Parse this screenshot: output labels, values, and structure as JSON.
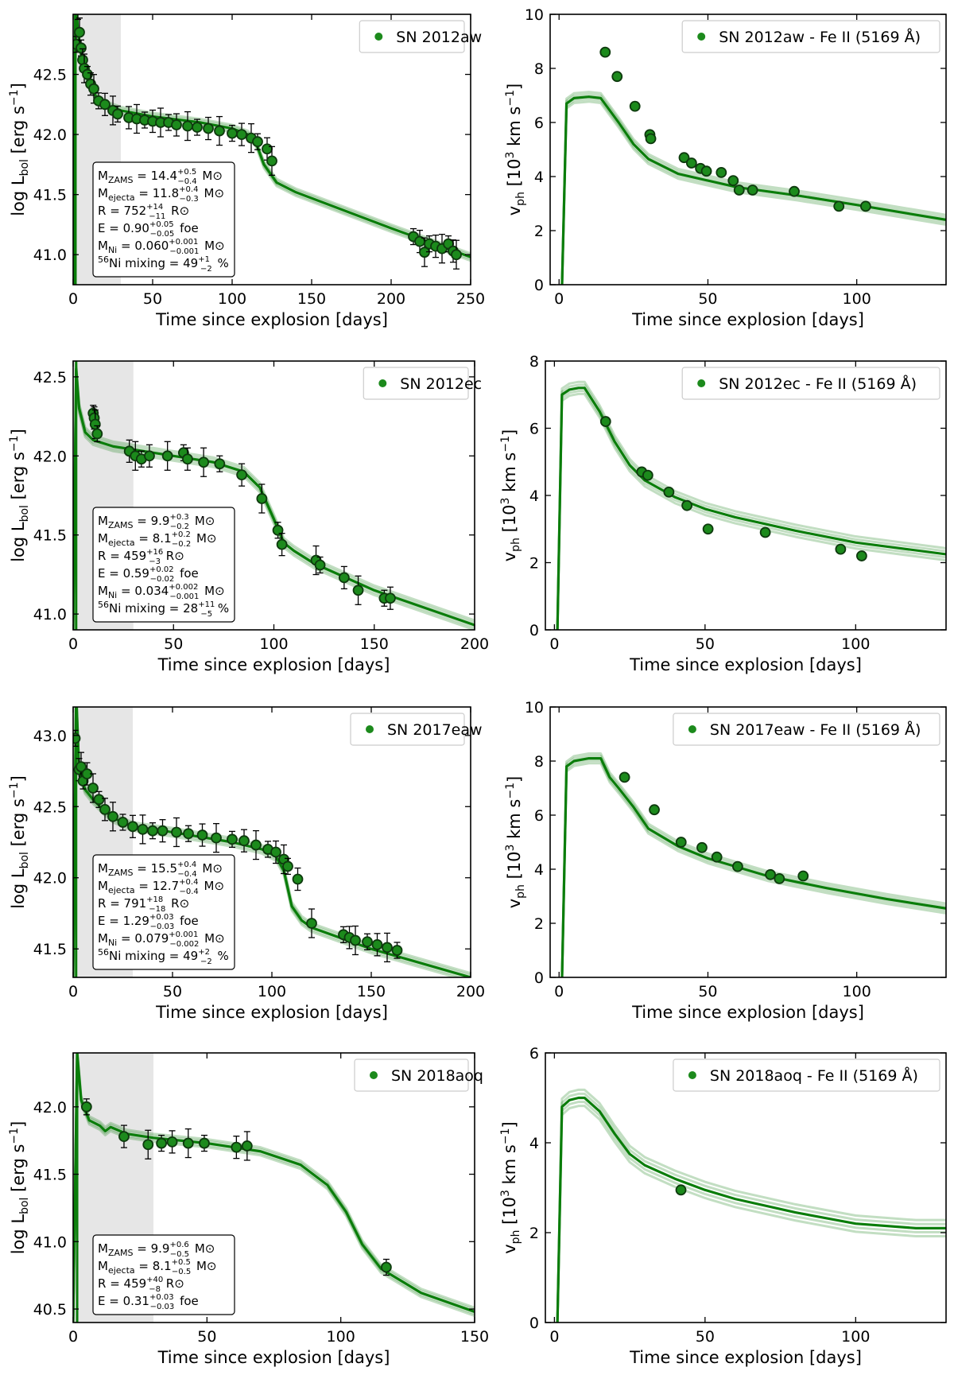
{
  "colors": {
    "accent": "#0a7d0a",
    "marker_fill": "#1c8a1c",
    "marker_edge": "#0e3a0e",
    "shade": "#e6e6e6"
  },
  "chart_data": [
    {
      "id": "lc1",
      "type": "line",
      "kind": "lightcurve",
      "title": "",
      "xlabel": "Time since explosion [days]",
      "ylabel": "log L_bol [erg s^-1]",
      "xlim": [
        0,
        250
      ],
      "ylim": [
        40.75,
        43.0
      ],
      "xticks": [
        0,
        50,
        100,
        150,
        200,
        250
      ],
      "yticks": [
        41.0,
        41.5,
        42.0,
        42.5
      ],
      "shade_x": [
        0,
        30
      ],
      "legend": "SN 2012aw",
      "model_x": [
        0,
        1.5,
        3,
        6,
        10,
        15,
        20,
        30,
        50,
        80,
        100,
        110,
        115,
        120,
        128,
        140,
        200,
        250
      ],
      "model_y": [
        40.75,
        43.2,
        42.85,
        42.58,
        42.42,
        42.3,
        42.25,
        42.2,
        42.15,
        42.1,
        42.05,
        42.0,
        41.93,
        41.75,
        41.6,
        41.52,
        41.22,
        40.98
      ],
      "points": [
        {
          "x": 2,
          "y": 42.75
        },
        {
          "x": 3,
          "y": 43.05
        },
        {
          "x": 4,
          "y": 42.85
        },
        {
          "x": 5,
          "y": 42.72
        },
        {
          "x": 6,
          "y": 42.62
        },
        {
          "x": 7,
          "y": 42.55
        },
        {
          "x": 9,
          "y": 42.5
        },
        {
          "x": 11,
          "y": 42.42
        },
        {
          "x": 13,
          "y": 42.38
        },
        {
          "x": 16,
          "y": 42.28
        },
        {
          "x": 20,
          "y": 42.25
        },
        {
          "x": 25,
          "y": 42.2
        },
        {
          "x": 28,
          "y": 42.17
        },
        {
          "x": 35,
          "y": 42.14
        },
        {
          "x": 40,
          "y": 42.13
        },
        {
          "x": 45,
          "y": 42.12
        },
        {
          "x": 50,
          "y": 42.11
        },
        {
          "x": 55,
          "y": 42.1
        },
        {
          "x": 60,
          "y": 42.1
        },
        {
          "x": 65,
          "y": 42.08
        },
        {
          "x": 72,
          "y": 42.07
        },
        {
          "x": 78,
          "y": 42.06
        },
        {
          "x": 85,
          "y": 42.05
        },
        {
          "x": 92,
          "y": 42.03
        },
        {
          "x": 100,
          "y": 42.01
        },
        {
          "x": 106,
          "y": 42.0
        },
        {
          "x": 112,
          "y": 41.97
        },
        {
          "x": 116,
          "y": 41.94
        },
        {
          "x": 122,
          "y": 41.88
        },
        {
          "x": 125,
          "y": 41.78
        },
        {
          "x": 214,
          "y": 41.15
        },
        {
          "x": 218,
          "y": 41.11
        },
        {
          "x": 221,
          "y": 41.02
        },
        {
          "x": 224,
          "y": 41.09
        },
        {
          "x": 228,
          "y": 41.07
        },
        {
          "x": 232,
          "y": 41.05
        },
        {
          "x": 236,
          "y": 41.09
        },
        {
          "x": 239,
          "y": 41.03
        },
        {
          "x": 241,
          "y": 41.0
        }
      ],
      "params": [
        "M_ZAMS = 14.4 (+0.5/−0.4) M⊙",
        "M_ejecta = 11.8 (+0.4/−0.3) M⊙",
        "R = 752 (+14/−11) R⊙",
        "E = 0.90 (+0.05/−0.05) foe",
        "M_Ni = 0.060 (+0.001/−0.001) M⊙",
        "56Ni mixing = 49 (+1/−2) %"
      ]
    },
    {
      "id": "v1",
      "type": "line",
      "kind": "velocity",
      "title": "",
      "xlabel": "Time since explosion [days]",
      "ylabel": "v_ph [10^3 km s^-1]",
      "xlim": [
        -3,
        130
      ],
      "ylim": [
        0,
        10
      ],
      "xticks": [
        0,
        50,
        100
      ],
      "yticks": [
        0,
        2,
        4,
        6,
        8,
        10
      ],
      "legend": "SN 2012aw - Fe II (5169 Å)",
      "model_x": [
        1,
        2.5,
        5,
        10,
        14,
        20,
        25,
        30,
        40,
        50,
        60,
        80,
        100,
        130
      ],
      "model_y": [
        0,
        6.7,
        6.9,
        6.95,
        6.9,
        6.0,
        5.2,
        4.65,
        4.1,
        3.85,
        3.6,
        3.3,
        2.95,
        2.4
      ],
      "points": [
        {
          "x": 15.5,
          "y": 8.6
        },
        {
          "x": 19.5,
          "y": 7.7
        },
        {
          "x": 25.5,
          "y": 6.6
        },
        {
          "x": 30.5,
          "y": 5.55
        },
        {
          "x": 30.8,
          "y": 5.4
        },
        {
          "x": 42,
          "y": 4.7
        },
        {
          "x": 44.5,
          "y": 4.5
        },
        {
          "x": 47.5,
          "y": 4.3
        },
        {
          "x": 49.5,
          "y": 4.2
        },
        {
          "x": 54.5,
          "y": 4.15
        },
        {
          "x": 58.5,
          "y": 3.85
        },
        {
          "x": 60.5,
          "y": 3.5
        },
        {
          "x": 65,
          "y": 3.5
        },
        {
          "x": 79,
          "y": 3.45
        },
        {
          "x": 94,
          "y": 2.9
        },
        {
          "x": 103,
          "y": 2.9
        }
      ]
    },
    {
      "id": "lc2",
      "type": "line",
      "kind": "lightcurve",
      "title": "",
      "xlabel": "Time since explosion [days]",
      "ylabel": "log L_bol [erg s^-1]",
      "xlim": [
        0,
        200
      ],
      "ylim": [
        40.9,
        42.6
      ],
      "xticks": [
        0,
        50,
        100,
        150,
        200
      ],
      "yticks": [
        41.0,
        41.5,
        42.0,
        42.5
      ],
      "shade_x": [
        0,
        30
      ],
      "legend": "SN 2012ec",
      "model_x": [
        0,
        1.5,
        3,
        6,
        10,
        15,
        20,
        30,
        50,
        70,
        85,
        93,
        100,
        105,
        110,
        120,
        150,
        200
      ],
      "model_y": [
        40.9,
        42.55,
        42.3,
        42.15,
        42.1,
        42.08,
        42.06,
        42.04,
        42.0,
        41.96,
        41.9,
        41.8,
        41.6,
        41.45,
        41.4,
        41.32,
        41.15,
        40.93
      ],
      "points": [
        {
          "x": 10,
          "y": 42.27
        },
        {
          "x": 10.5,
          "y": 42.24
        },
        {
          "x": 11,
          "y": 42.2
        },
        {
          "x": 12,
          "y": 42.14
        },
        {
          "x": 28,
          "y": 42.03
        },
        {
          "x": 31,
          "y": 42.0
        },
        {
          "x": 34,
          "y": 41.98
        },
        {
          "x": 38,
          "y": 42.0
        },
        {
          "x": 47,
          "y": 42.0
        },
        {
          "x": 55,
          "y": 42.02
        },
        {
          "x": 57,
          "y": 41.98
        },
        {
          "x": 65,
          "y": 41.96
        },
        {
          "x": 73,
          "y": 41.95
        },
        {
          "x": 84,
          "y": 41.88
        },
        {
          "x": 94,
          "y": 41.73
        },
        {
          "x": 102,
          "y": 41.53
        },
        {
          "x": 104,
          "y": 41.44
        },
        {
          "x": 121,
          "y": 41.34
        },
        {
          "x": 123,
          "y": 41.31
        },
        {
          "x": 135,
          "y": 41.23
        },
        {
          "x": 142,
          "y": 41.15
        },
        {
          "x": 155,
          "y": 41.1
        },
        {
          "x": 158,
          "y": 41.1
        }
      ],
      "params": [
        "M_ZAMS = 9.9 (+0.3/−0.2) M⊙",
        "M_ejecta = 8.1 (+0.2/−0.2) M⊙",
        "R = 459 (+16/−3) R⊙",
        "E = 0.59 (+0.02/−0.02) foe",
        "M_Ni = 0.034 (+0.002/−0.001) M⊙",
        "56Ni mixing = 28 (+11/−5) %"
      ]
    },
    {
      "id": "v2",
      "type": "line",
      "kind": "velocity",
      "title": "",
      "xlabel": "Time since explosion [days]",
      "ylabel": "v_ph [10^3 km s^-1]",
      "xlim": [
        -3,
        130
      ],
      "ylim": [
        0,
        8
      ],
      "xticks": [
        0,
        50,
        100
      ],
      "yticks": [
        0,
        2,
        4,
        6,
        8
      ],
      "legend": "SN 2012ec - Fe II (5169 Å)",
      "model_x": [
        1,
        2.5,
        5,
        8,
        10,
        15,
        20,
        25,
        30,
        40,
        50,
        60,
        80,
        100,
        130
      ],
      "model_y": [
        0,
        7.0,
        7.15,
        7.2,
        7.2,
        6.5,
        5.6,
        4.9,
        4.45,
        3.95,
        3.6,
        3.35,
        2.95,
        2.6,
        2.25
      ],
      "points": [
        {
          "x": 17,
          "y": 6.2
        },
        {
          "x": 29,
          "y": 4.7
        },
        {
          "x": 31,
          "y": 4.6
        },
        {
          "x": 38,
          "y": 4.1
        },
        {
          "x": 44,
          "y": 3.7
        },
        {
          "x": 51,
          "y": 3.0
        },
        {
          "x": 70,
          "y": 2.9
        },
        {
          "x": 95,
          "y": 2.4
        },
        {
          "x": 102,
          "y": 2.2
        }
      ]
    },
    {
      "id": "lc3",
      "type": "line",
      "kind": "lightcurve",
      "title": "",
      "xlabel": "Time since explosion [days]",
      "ylabel": "log L_bol [erg s^-1]",
      "xlim": [
        0,
        200
      ],
      "ylim": [
        41.3,
        43.2
      ],
      "xticks": [
        0,
        50,
        100,
        150,
        200
      ],
      "yticks": [
        41.5,
        42.0,
        42.5,
        43.0
      ],
      "shade_x": [
        0,
        30
      ],
      "legend": "SN 2017eaw",
      "model_x": [
        0,
        1.5,
        3,
        6,
        10,
        15,
        20,
        30,
        50,
        80,
        95,
        102,
        106,
        110,
        115,
        120,
        150,
        200
      ],
      "model_y": [
        41.3,
        43.3,
        42.75,
        42.62,
        42.55,
        42.48,
        42.42,
        42.36,
        42.32,
        42.25,
        42.2,
        42.15,
        42.05,
        41.8,
        41.7,
        41.65,
        41.5,
        41.3
      ],
      "points": [
        {
          "x": 1,
          "y": 42.98
        },
        {
          "x": 3,
          "y": 42.76
        },
        {
          "x": 4,
          "y": 42.78
        },
        {
          "x": 5,
          "y": 42.68
        },
        {
          "x": 7,
          "y": 42.73
        },
        {
          "x": 10,
          "y": 42.63
        },
        {
          "x": 13,
          "y": 42.55
        },
        {
          "x": 16,
          "y": 42.48
        },
        {
          "x": 20,
          "y": 42.43
        },
        {
          "x": 25,
          "y": 42.39
        },
        {
          "x": 30,
          "y": 42.36
        },
        {
          "x": 35,
          "y": 42.34
        },
        {
          "x": 40,
          "y": 42.33
        },
        {
          "x": 45,
          "y": 42.33
        },
        {
          "x": 52,
          "y": 42.32
        },
        {
          "x": 58,
          "y": 42.31
        },
        {
          "x": 65,
          "y": 42.3
        },
        {
          "x": 72,
          "y": 42.28
        },
        {
          "x": 80,
          "y": 42.27
        },
        {
          "x": 86,
          "y": 42.26
        },
        {
          "x": 92,
          "y": 42.23
        },
        {
          "x": 98,
          "y": 42.2
        },
        {
          "x": 102,
          "y": 42.18
        },
        {
          "x": 106,
          "y": 42.13
        },
        {
          "x": 108,
          "y": 42.08
        },
        {
          "x": 113,
          "y": 41.99
        },
        {
          "x": 120,
          "y": 41.68
        },
        {
          "x": 136,
          "y": 41.6
        },
        {
          "x": 139,
          "y": 41.58
        },
        {
          "x": 142,
          "y": 41.56
        },
        {
          "x": 148,
          "y": 41.55
        },
        {
          "x": 153,
          "y": 41.53
        },
        {
          "x": 158,
          "y": 41.51
        },
        {
          "x": 163,
          "y": 41.49
        }
      ],
      "params": [
        "M_ZAMS = 15.5 (+0.4/−0.4) M⊙",
        "M_ejecta = 12.7 (+0.4/−0.4) M⊙",
        "R = 791 (+18/−18) R⊙",
        "E = 1.29 (+0.03/−0.03) foe",
        "M_Ni = 0.079 (+0.001/−0.002) M⊙",
        "56Ni mixing = 49 (+2/−2) %"
      ]
    },
    {
      "id": "v3",
      "type": "line",
      "kind": "velocity",
      "title": "",
      "xlabel": "Time since explosion [days]",
      "ylabel": "v_ph [10^3 km s^-1]",
      "xlim": [
        -3,
        130
      ],
      "ylim": [
        0,
        10
      ],
      "xticks": [
        0,
        50,
        100
      ],
      "yticks": [
        0,
        2,
        4,
        6,
        8,
        10
      ],
      "legend": "SN 2017eaw - Fe II (5169 Å)",
      "model_x": [
        1,
        2.5,
        5,
        10,
        14,
        17,
        20,
        25,
        30,
        40,
        50,
        70,
        90,
        110,
        130
      ],
      "model_y": [
        0,
        7.8,
        8.0,
        8.1,
        8.1,
        7.4,
        7.0,
        6.3,
        5.5,
        4.85,
        4.4,
        3.75,
        3.3,
        2.9,
        2.55
      ],
      "points": [
        {
          "x": 22,
          "y": 7.4
        },
        {
          "x": 32,
          "y": 6.2
        },
        {
          "x": 41,
          "y": 5.0
        },
        {
          "x": 48,
          "y": 4.8
        },
        {
          "x": 53,
          "y": 4.45
        },
        {
          "x": 60,
          "y": 4.1
        },
        {
          "x": 71,
          "y": 3.8
        },
        {
          "x": 74,
          "y": 3.65
        },
        {
          "x": 82,
          "y": 3.75
        }
      ]
    },
    {
      "id": "lc4",
      "type": "line",
      "kind": "lightcurve",
      "title": "",
      "xlabel": "Time since explosion [days]",
      "ylabel": "log L_bol [erg s^-1]",
      "xlim": [
        0,
        150
      ],
      "ylim": [
        40.4,
        42.4
      ],
      "xticks": [
        0,
        50,
        100,
        150
      ],
      "yticks": [
        40.5,
        41.0,
        41.5,
        42.0
      ],
      "shade_x": [
        0,
        30
      ],
      "legend": "SN 2018aoq",
      "model_x": [
        0,
        1.5,
        3,
        6,
        10,
        12,
        14,
        20,
        30,
        50,
        70,
        85,
        95,
        102,
        108,
        115,
        130,
        150
      ],
      "model_y": [
        40.4,
        42.4,
        42.05,
        41.9,
        41.86,
        41.82,
        41.85,
        41.8,
        41.77,
        41.73,
        41.67,
        41.57,
        41.42,
        41.22,
        40.98,
        40.8,
        40.62,
        40.48
      ],
      "points": [
        {
          "x": 5,
          "y": 42.0
        },
        {
          "x": 19,
          "y": 41.78
        },
        {
          "x": 28,
          "y": 41.72
        },
        {
          "x": 33,
          "y": 41.73
        },
        {
          "x": 37,
          "y": 41.74
        },
        {
          "x": 43,
          "y": 41.73
        },
        {
          "x": 49,
          "y": 41.73
        },
        {
          "x": 61,
          "y": 41.7
        },
        {
          "x": 65,
          "y": 41.71
        },
        {
          "x": 117,
          "y": 40.81
        }
      ],
      "params": [
        "M_ZAMS = 9.9 (+0.6/−0.5) M⊙",
        "M_ejecta = 8.1 (+0.5/−0.5) M⊙",
        "R = 459 (+40/−8) R⊙",
        "E = 0.31 (+0.03/−0.03) foe"
      ]
    },
    {
      "id": "v4",
      "type": "line",
      "kind": "velocity",
      "title": "",
      "xlabel": "Time since explosion [days]",
      "ylabel": "v_ph [10^3 km s^-1]",
      "xlim": [
        -3,
        130
      ],
      "ylim": [
        0,
        6
      ],
      "xticks": [
        0,
        50,
        100
      ],
      "yticks": [
        0,
        2,
        4,
        6
      ],
      "legend": "SN 2018aoq - Fe II (5169 Å)",
      "model_x": [
        1,
        2.5,
        5,
        8,
        10,
        15,
        20,
        25,
        30,
        40,
        50,
        60,
        80,
        100,
        120,
        130
      ],
      "model_y": [
        0,
        4.8,
        4.95,
        5.0,
        5.0,
        4.7,
        4.2,
        3.75,
        3.5,
        3.2,
        2.95,
        2.75,
        2.45,
        2.2,
        2.1,
        2.1
      ],
      "points": [
        {
          "x": 42,
          "y": 2.95
        }
      ]
    }
  ]
}
